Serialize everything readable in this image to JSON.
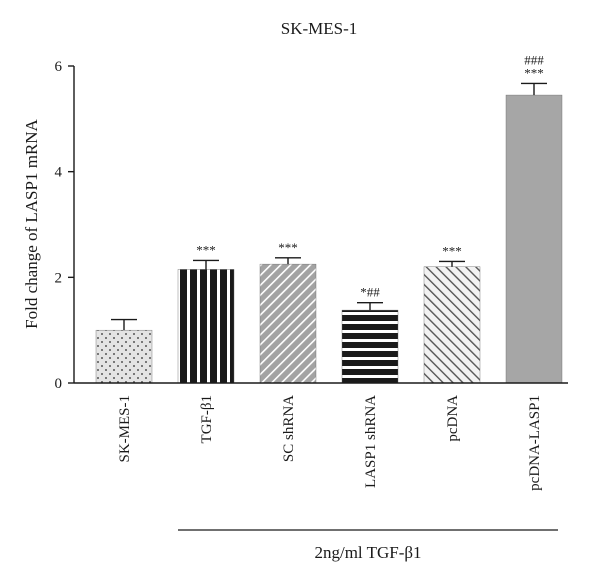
{
  "chart_data": {
    "type": "bar",
    "title": "SK-MES-1",
    "ylabel": "Fold change of LASP1 mRNA",
    "xlabel": "",
    "ylim": [
      0,
      6
    ],
    "yticks": [
      "0",
      "2",
      "4",
      "6"
    ],
    "categories": [
      "SK-MES-1",
      "TGF-β1",
      "SC shRNA",
      "LASP1 shRNA",
      "pcDNA",
      "pcDNA-LASP1"
    ],
    "values": [
      1.0,
      2.15,
      2.25,
      1.38,
      2.2,
      5.45
    ],
    "errors": [
      0.2,
      0.17,
      0.12,
      0.14,
      0.1,
      0.22
    ],
    "annotations": [
      "",
      "***",
      "***",
      "*##",
      "***",
      "###\n***"
    ],
    "bar_patterns": [
      "dots",
      "vertical-lines",
      "diagonal-right",
      "horizontal-lines",
      "diagonal-left",
      "solid-gray"
    ],
    "group_label": "2ng/ml TGF-β1",
    "group_start_index": 1,
    "grid": false,
    "colors": {
      "axis": "#1a1a1a",
      "dark_bar": "#1a1a1a",
      "gray_bar": "#a6a6a6",
      "light_bar": "#e3e3e3"
    }
  }
}
